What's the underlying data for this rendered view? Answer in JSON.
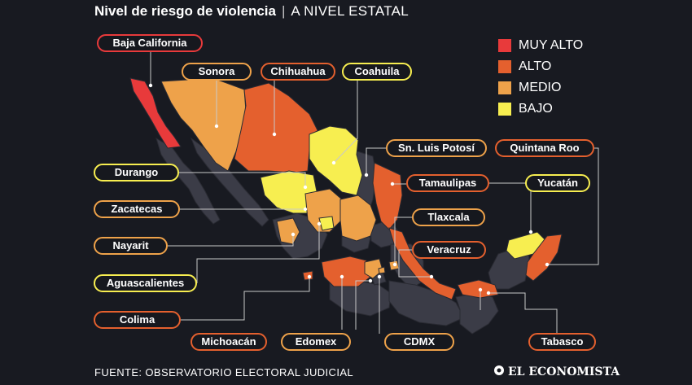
{
  "title": {
    "main": "Nivel de riesgo de violencia",
    "separator": "|",
    "sub": "A NIVEL ESTATAL"
  },
  "legend": [
    {
      "label": "MUY ALTO",
      "color": "#e83a3b"
    },
    {
      "label": "ALTO",
      "color": "#e4602e"
    },
    {
      "label": "MEDIO",
      "color": "#eea24a"
    },
    {
      "label": "BAJO",
      "color": "#f7ee50"
    }
  ],
  "states": [
    {
      "name": "Baja California",
      "level": "MUY ALTO"
    },
    {
      "name": "Sonora",
      "level": "MEDIO"
    },
    {
      "name": "Chihuahua",
      "level": "ALTO"
    },
    {
      "name": "Coahuila",
      "level": "BAJO"
    },
    {
      "name": "Sn. Luis Potosí",
      "level": "MEDIO"
    },
    {
      "name": "Quintana Roo",
      "level": "ALTO"
    },
    {
      "name": "Durango",
      "level": "BAJO"
    },
    {
      "name": "Tamaulipas",
      "level": "ALTO"
    },
    {
      "name": "Yucatán",
      "level": "BAJO"
    },
    {
      "name": "Zacatecas",
      "level": "MEDIO"
    },
    {
      "name": "Tlaxcala",
      "level": "MEDIO"
    },
    {
      "name": "Nayarit",
      "level": "MEDIO"
    },
    {
      "name": "Veracruz",
      "level": "ALTO"
    },
    {
      "name": "Aguascalientes",
      "level": "BAJO"
    },
    {
      "name": "Colima",
      "level": "ALTO"
    },
    {
      "name": "Michoacán",
      "level": "ALTO"
    },
    {
      "name": "Edomex",
      "level": "MEDIO"
    },
    {
      "name": "CDMX",
      "level": "MEDIO"
    },
    {
      "name": "Tabasco",
      "level": "ALTO"
    }
  ],
  "source": "FUENTE: OBSERVATORIO ELECTORAL JUDICIAL",
  "brand": "EL ECONOMISTA",
  "colors": {
    "background": "#181a21",
    "other_states": "#3b3c47",
    "leader_line": "#c9c9c9"
  }
}
